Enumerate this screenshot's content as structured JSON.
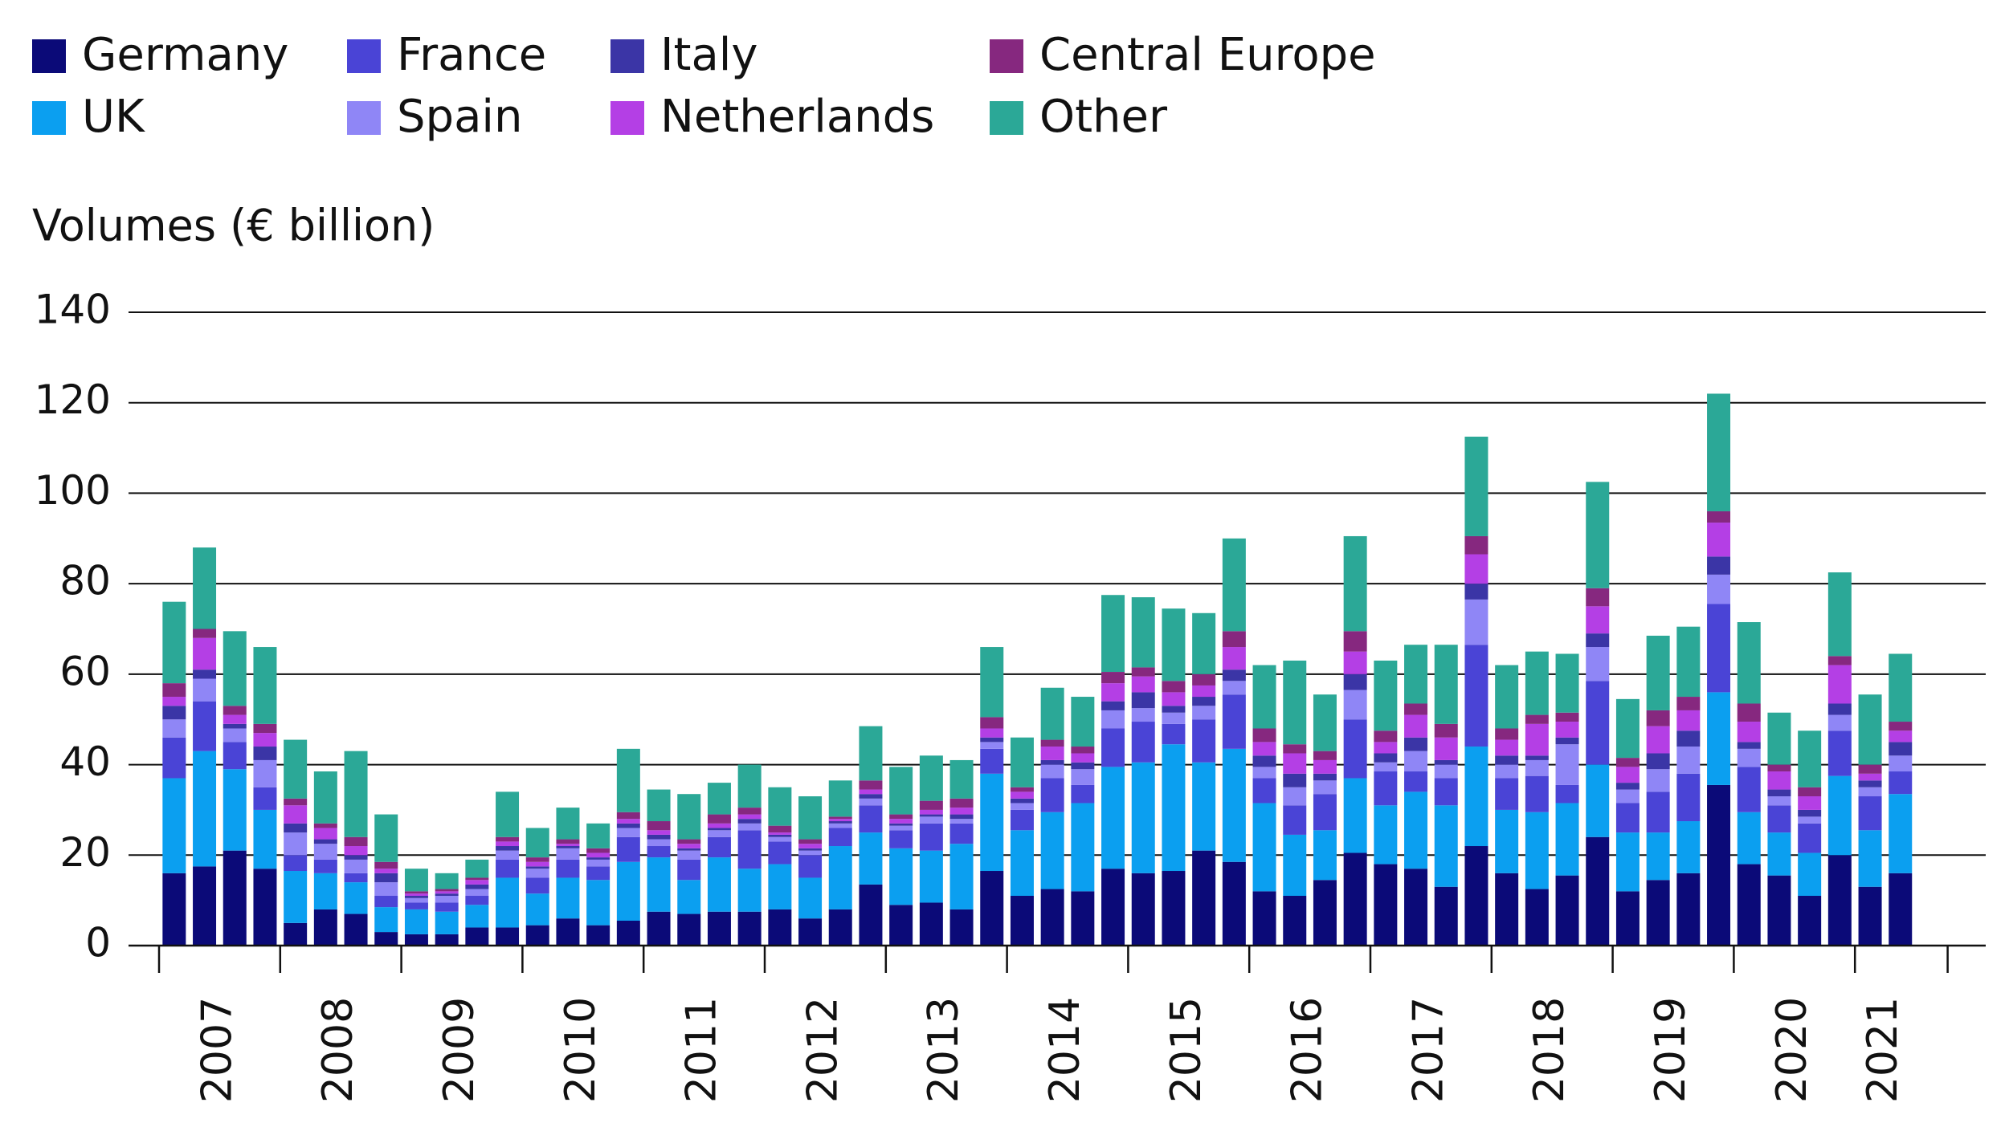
{
  "chart_data": {
    "type": "stacked_bar",
    "y_axis_label": "Volumes (€ billion)",
    "categories": [
      "2007",
      null,
      null,
      null,
      "2008",
      null,
      null,
      null,
      "2009",
      null,
      null,
      null,
      "2010",
      null,
      null,
      null,
      "2011",
      null,
      null,
      null,
      "2012",
      null,
      null,
      null,
      "2013",
      null,
      null,
      null,
      "2014",
      null,
      null,
      null,
      "2015",
      null,
      null,
      null,
      "2016",
      null,
      null,
      null,
      "2017",
      null,
      null,
      null,
      "2018",
      null,
      null,
      null,
      "2019",
      null,
      null,
      null,
      "2020",
      null,
      null,
      null,
      "2021",
      null
    ],
    "ylim": [
      0,
      140
    ],
    "yticks": [
      0,
      20,
      40,
      60,
      80,
      100,
      120,
      140
    ],
    "grid": true,
    "legend": "top",
    "series": [
      {
        "name": "Germany",
        "color": "#0b0a78",
        "values": [
          16,
          17.5,
          21,
          17,
          5,
          8,
          7,
          3,
          2.5,
          2.5,
          4,
          4,
          4.5,
          6,
          4.5,
          5.5,
          7.5,
          7,
          7.5,
          7.5,
          8,
          6,
          8,
          13.5,
          9,
          9.5,
          8,
          16.5,
          11,
          12.5,
          12,
          17,
          16,
          16.5,
          21,
          18.5,
          12,
          11,
          14.5,
          20.5,
          18,
          17,
          13,
          22,
          16,
          12.5,
          15.5,
          24,
          12,
          14.5,
          16,
          35.5,
          18,
          15.5,
          11,
          20,
          13,
          16
        ]
      },
      {
        "name": "UK",
        "color": "#0b9ff0",
        "values": [
          21,
          25.5,
          18,
          13,
          11.5,
          8,
          7,
          5.5,
          5.5,
          5,
          5,
          11,
          7,
          9,
          10,
          13,
          12,
          7.5,
          12,
          9.5,
          10,
          9,
          14,
          11.5,
          12.5,
          11.5,
          14.5,
          21.5,
          14.5,
          17,
          19.5,
          22.5,
          24.5,
          28,
          19.5,
          25,
          19.5,
          13.5,
          11,
          16.5,
          13,
          17,
          18,
          22,
          14,
          17,
          16,
          16,
          13,
          10.5,
          11.5,
          20.5,
          11.5,
          9.5,
          9.5,
          17.5,
          12.5,
          17.5
        ]
      },
      {
        "name": "France",
        "color": "#4a44d6",
        "values": [
          9,
          11,
          6,
          5,
          3.5,
          3,
          2,
          2.5,
          1.5,
          2,
          2,
          4,
          3.5,
          4,
          3,
          5.5,
          2.5,
          4.5,
          4.5,
          8.5,
          5,
          5,
          4,
          6,
          4,
          6,
          4.5,
          5.5,
          4.5,
          7.5,
          4,
          8.5,
          9,
          4.5,
          9.5,
          12,
          5.5,
          6.5,
          8,
          13,
          7.5,
          4.5,
          6,
          22.5,
          7,
          8,
          4,
          18.5,
          6.5,
          9,
          10.5,
          19.5,
          10,
          6,
          6.5,
          10,
          7.5,
          5
        ]
      },
      {
        "name": "Spain",
        "color": "#8f86f6",
        "values": [
          4,
          5,
          3,
          6,
          5,
          3.5,
          3,
          3,
          1,
          1.5,
          1.5,
          2,
          2,
          2.5,
          1.5,
          2,
          1.5,
          2,
          1.5,
          1.5,
          1,
          1,
          1,
          1.5,
          1,
          1.5,
          1,
          1.5,
          1.5,
          3,
          3.5,
          4,
          3,
          2.5,
          3,
          3,
          2.5,
          4,
          3,
          6.5,
          2,
          4.5,
          3,
          10,
          3,
          3.5,
          9,
          7.5,
          3,
          5,
          6,
          6.5,
          4,
          2,
          1.5,
          3.5,
          2,
          3.5
        ]
      },
      {
        "name": "Italy",
        "color": "#3b35a6",
        "values": [
          3,
          2,
          1,
          3,
          2,
          1,
          1,
          2,
          0.5,
          0.5,
          1,
          1,
          0.5,
          0.5,
          0.5,
          1,
          1,
          0.5,
          0.5,
          1,
          0.5,
          0.5,
          0.5,
          1,
          0.5,
          0.5,
          1,
          1,
          1,
          1,
          1.5,
          2,
          3.5,
          1.5,
          2,
          2.5,
          2.5,
          3,
          1.5,
          3.5,
          2,
          3,
          1,
          3.5,
          2,
          1,
          1.5,
          3,
          1.5,
          3.5,
          3.5,
          4,
          1.5,
          1.5,
          1.5,
          2.5,
          1.5,
          3
        ]
      },
      {
        "name": "Netherlands",
        "color": "#b43fe5",
        "values": [
          2,
          7,
          2,
          3,
          4,
          2.5,
          2,
          1,
          0.5,
          0.5,
          1,
          1,
          1,
          0.5,
          1,
          1,
          1,
          1,
          1,
          1,
          0.5,
          1,
          0.5,
          1,
          1,
          1,
          1.5,
          2,
          1.5,
          3,
          2,
          4,
          3.5,
          3,
          2.5,
          5,
          3,
          4.5,
          3,
          5,
          2.5,
          5,
          5,
          6.5,
          3.5,
          7,
          3.5,
          6,
          3.5,
          6,
          4.5,
          7.5,
          4.5,
          4,
          3,
          8.5,
          1.5,
          2.5
        ]
      },
      {
        "name": "Central Europe",
        "color": "#86287f",
        "values": [
          3,
          2,
          2,
          2,
          1.5,
          1,
          2,
          1.5,
          0.5,
          0.5,
          0.5,
          1,
          1,
          1,
          1,
          1.5,
          2,
          1,
          2,
          1.5,
          1.5,
          1,
          0.5,
          2,
          1,
          2,
          2,
          2.5,
          1,
          1.5,
          1.5,
          2.5,
          2,
          2.5,
          2.5,
          3.5,
          3,
          2,
          2,
          4.5,
          2.5,
          2.5,
          3,
          4,
          2.5,
          2,
          2,
          4,
          2,
          3.5,
          3,
          2.5,
          4,
          1.5,
          2,
          2,
          2,
          2
        ]
      },
      {
        "name": "Other",
        "color": "#2ba897",
        "values": [
          18,
          18,
          16.5,
          17,
          13,
          11.5,
          19,
          10.5,
          5,
          3.5,
          4,
          10,
          6.5,
          7,
          5.5,
          14,
          7,
          10,
          7,
          9.5,
          8.5,
          9.5,
          8,
          12,
          10.5,
          10,
          8.5,
          15.5,
          11,
          11.5,
          11,
          17,
          15.5,
          16,
          13.5,
          20.5,
          14,
          18.5,
          12.5,
          21,
          15.5,
          13,
          17.5,
          22,
          14,
          14,
          13,
          23.5,
          13,
          16.5,
          15.5,
          26,
          18,
          11.5,
          12.5,
          18.5,
          15.5,
          15
        ]
      }
    ]
  }
}
